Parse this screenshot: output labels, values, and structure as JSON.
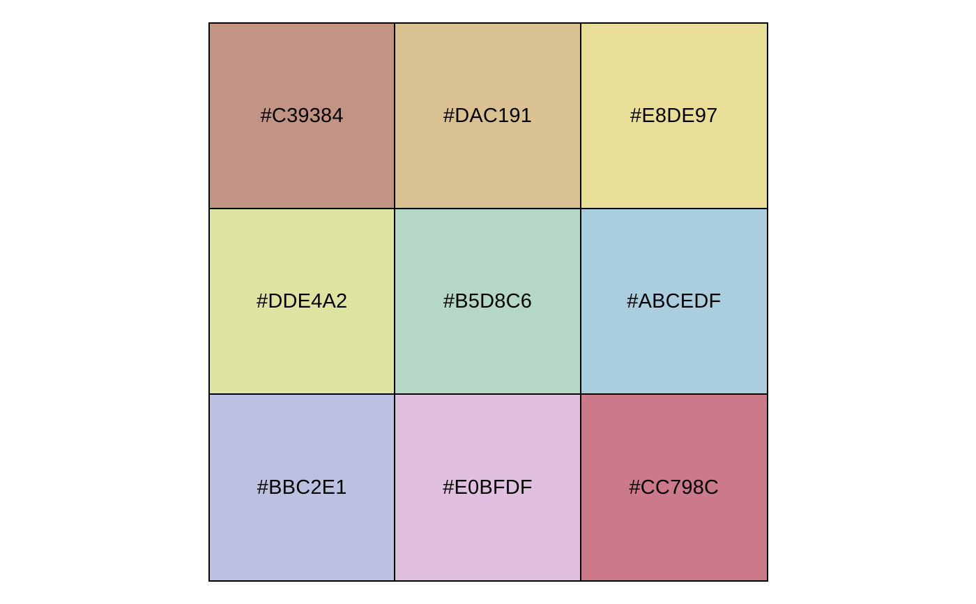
{
  "palette": {
    "swatches": [
      {
        "label": "#C39384",
        "color": "#C39384"
      },
      {
        "label": "#DAC191",
        "color": "#DAC191"
      },
      {
        "label": "#E8DE97",
        "color": "#E8DE97"
      },
      {
        "label": "#DDE4A2",
        "color": "#DDE4A2"
      },
      {
        "label": "#B5D8C6",
        "color": "#B5D8C6"
      },
      {
        "label": "#ABCEDF",
        "color": "#ABCEDF"
      },
      {
        "label": "#BBC2E1",
        "color": "#BBC2E1"
      },
      {
        "label": "#E0BFDF",
        "color": "#E0BFDF"
      },
      {
        "label": "#CC798C",
        "color": "#CC798C"
      }
    ]
  }
}
